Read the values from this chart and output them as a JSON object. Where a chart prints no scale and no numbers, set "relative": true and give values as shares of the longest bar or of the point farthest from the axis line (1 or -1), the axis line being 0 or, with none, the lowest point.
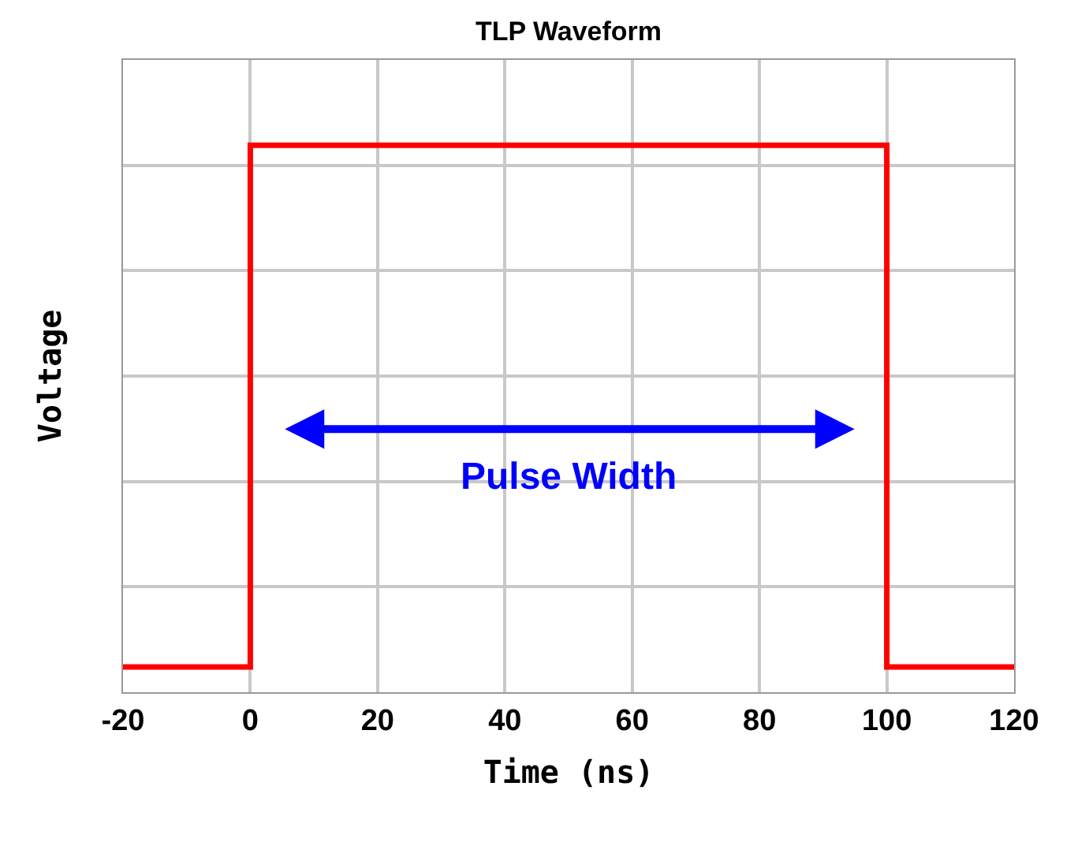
{
  "chart_data": {
    "type": "step",
    "title": "TLP Waveform",
    "xlabel": "Time (ns)",
    "ylabel": "Voltage",
    "relative": true,
    "x": [
      -20,
      0,
      100,
      120
    ],
    "series": [
      {
        "color": "#ff0000",
        "values": [
          0.046,
          1,
          0.046,
          0.046
        ]
      }
    ],
    "xlim": [
      -20,
      120
    ],
    "xticks": [
      -20,
      0,
      20,
      40,
      60,
      80,
      100,
      120
    ],
    "grid": true,
    "marker": "none",
    "line_style": "solid",
    "annotations": [
      "Pulse Width"
    ]
  }
}
